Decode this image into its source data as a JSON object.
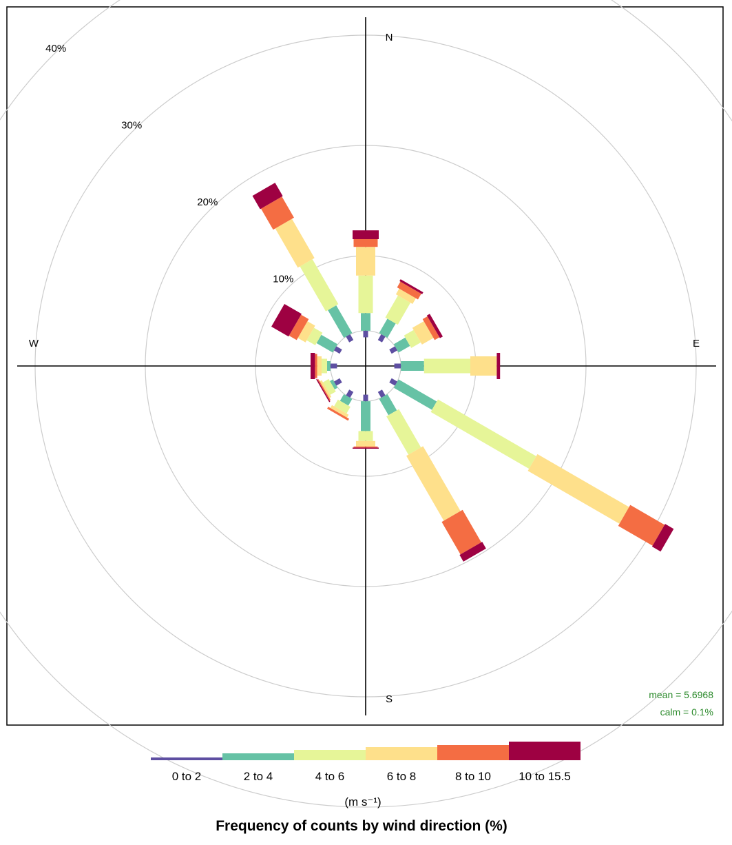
{
  "chart_data": {
    "type": "wind-rose",
    "title": "Frequency of counts by wind direction (%)",
    "units": "(m s⁻¹)",
    "radial_ticks": [
      {
        "value": 10,
        "label": "10%"
      },
      {
        "value": 20,
        "label": "20%"
      },
      {
        "value": 30,
        "label": "30%"
      },
      {
        "value": 40,
        "label": "40%"
      }
    ],
    "cardinals": {
      "N": "N",
      "E": "E",
      "S": "S",
      "W": "W"
    },
    "stats": {
      "mean": "mean = 5.6968",
      "calm": "calm = 0.1%"
    },
    "bins": [
      {
        "label": "0 to 2",
        "color": "#5e4fa2"
      },
      {
        "label": "2 to 4",
        "color": "#66c2a5"
      },
      {
        "label": "4 to 6",
        "color": "#e6f598"
      },
      {
        "label": "6 to 8",
        "color": "#fee08b"
      },
      {
        "label": "8 to 10",
        "color": "#f46d43"
      },
      {
        "label": "10 to 15.5",
        "color": "#9e0142"
      }
    ],
    "directions": [
      {
        "dir": 0,
        "cum": [
          3.2,
          4.8,
          8.2,
          10.8,
          11.5,
          12.3
        ]
      },
      {
        "dir": 30,
        "cum": [
          3.2,
          4.7,
          7.0,
          7.6,
          8.2,
          8.4
        ]
      },
      {
        "dir": 60,
        "cum": [
          3.2,
          4.4,
          5.4,
          6.6,
          7.1,
          7.4
        ]
      },
      {
        "dir": 90,
        "cum": [
          3.2,
          5.3,
          9.5,
          11.9,
          11.9,
          12.2
        ]
      },
      {
        "dir": 120,
        "cum": [
          3.2,
          7.2,
          17.5,
          27.1,
          30.7,
          31.6
        ]
      },
      {
        "dir": 150,
        "cum": [
          3.2,
          4.9,
          8.9,
          15.7,
          19.1,
          19.8
        ]
      },
      {
        "dir": 180,
        "cum": [
          3.2,
          5.9,
          6.8,
          7.3,
          7.4,
          7.5
        ]
      },
      {
        "dir": 210,
        "cum": [
          3.2,
          3.9,
          4.6,
          4.9,
          5.1,
          5.1
        ]
      },
      {
        "dir": 240,
        "cum": [
          3.2,
          3.5,
          4.1,
          4.3,
          4.4,
          4.5
        ]
      },
      {
        "dir": 270,
        "cum": [
          3.2,
          3.5,
          4.0,
          4.4,
          4.6,
          5.0
        ]
      },
      {
        "dir": 300,
        "cum": [
          3.2,
          4.9,
          5.8,
          6.6,
          7.4,
          9.2
        ]
      },
      {
        "dir": 330,
        "cum": [
          3.2,
          6.1,
          10.8,
          14.9,
          17.1,
          18.5
        ]
      }
    ]
  }
}
